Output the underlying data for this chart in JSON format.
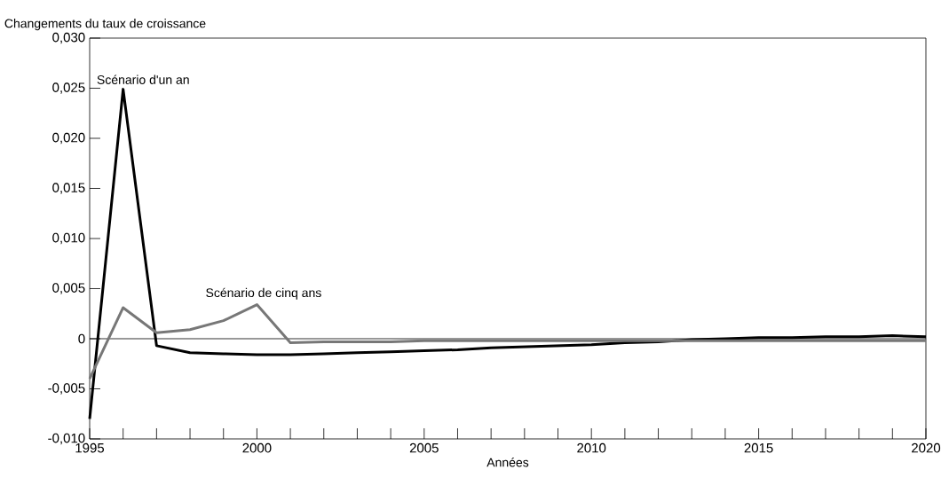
{
  "chart_data": {
    "type": "line",
    "ylabel": "Changements du taux de croissance",
    "xlabel": "Années",
    "x": [
      1995,
      1996,
      1997,
      1998,
      1999,
      2000,
      2001,
      2002,
      2003,
      2004,
      2005,
      2006,
      2007,
      2008,
      2009,
      2010,
      2011,
      2012,
      2013,
      2014,
      2015,
      2016,
      2017,
      2018,
      2019,
      2020
    ],
    "series": [
      {
        "name": "Scénario d'un an",
        "color": "#000000",
        "values": [
          -0.008,
          0.0249,
          -0.0007,
          -0.0014,
          -0.0015,
          -0.0016,
          -0.0016,
          -0.0015,
          -0.0014,
          -0.0013,
          -0.0012,
          -0.0011,
          -0.0009,
          -0.0008,
          -0.0007,
          -0.0006,
          -0.0004,
          -0.0003,
          -0.0001,
          0.0,
          0.0001,
          0.0001,
          0.0002,
          0.0002,
          0.0003,
          0.0002
        ]
      },
      {
        "name": "Scénario de cinq ans",
        "color": "#777777",
        "values": [
          -0.004,
          0.0031,
          0.0006,
          0.0009,
          0.0018,
          0.0034,
          -0.0004,
          -0.0003,
          -0.0003,
          -0.0003,
          -0.0002,
          -0.0002,
          -0.0002,
          -0.0002,
          -0.0002,
          -0.0002,
          -0.0002,
          -0.0002,
          -0.0002,
          -0.0002,
          -0.0002,
          -0.0002,
          -0.0002,
          -0.0002,
          -0.0002,
          -0.0002
        ]
      }
    ],
    "xlim": [
      1995,
      2020
    ],
    "xticks": [
      1995,
      {
        "value": 1996,
        "label": null
      },
      {
        "value": 1997,
        "label": null
      },
      {
        "value": 1998,
        "label": null
      },
      {
        "value": 1999,
        "label": null
      },
      2000,
      {
        "value": 2001,
        "label": null
      },
      {
        "value": 2002,
        "label": null
      },
      {
        "value": 2003,
        "label": null
      },
      {
        "value": 2004,
        "label": null
      },
      2005,
      {
        "value": 2006,
        "label": null
      },
      {
        "value": 2007,
        "label": null
      },
      {
        "value": 2008,
        "label": null
      },
      {
        "value": 2009,
        "label": null
      },
      2010,
      {
        "value": 2011,
        "label": null
      },
      {
        "value": 2012,
        "label": null
      },
      {
        "value": 2013,
        "label": null
      },
      {
        "value": 2014,
        "label": null
      },
      2015,
      {
        "value": 2016,
        "label": null
      },
      {
        "value": 2017,
        "label": null
      },
      {
        "value": 2018,
        "label": null
      },
      {
        "value": 2019,
        "label": null
      },
      2020
    ],
    "ylim": [
      -0.01,
      0.03
    ],
    "yticks": [
      {
        "value": -0.01,
        "label": "-0,010"
      },
      {
        "value": -0.005,
        "label": "-0,005"
      },
      0,
      {
        "value": 0.005,
        "label": "0,005"
      },
      {
        "value": 0.01,
        "label": "0,010"
      },
      {
        "value": 0.015,
        "label": "0,015"
      },
      {
        "value": 0.02,
        "label": "0,020"
      },
      {
        "value": 0.025,
        "label": "0,025"
      },
      {
        "value": 0.03,
        "label": "0,030"
      }
    ],
    "ref_lines": [
      {
        "axis": "y",
        "value": 0
      }
    ],
    "grid": false,
    "legend": false,
    "marker": "none",
    "line_style": "solid"
  }
}
